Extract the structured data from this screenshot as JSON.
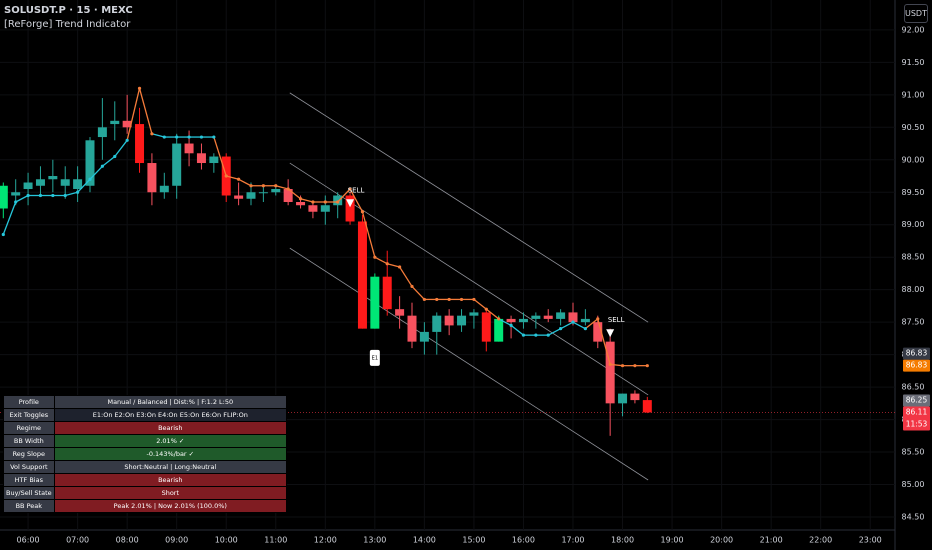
{
  "header": {
    "symbol": "SOLUSDT.P · 15 · MEXC",
    "indicator": "[ReForge] Trend Indicator",
    "currency": "USDT"
  },
  "chart_data": {
    "type": "candlestick",
    "x": [
      "05:30",
      "05:45",
      "06:00",
      "06:15",
      "06:30",
      "06:45",
      "07:00",
      "07:15",
      "07:30",
      "07:45",
      "08:00",
      "08:15",
      "08:30",
      "08:45",
      "09:00",
      "09:15",
      "09:30",
      "09:45",
      "10:00",
      "10:15",
      "10:30",
      "10:45",
      "11:00",
      "11:15",
      "11:30",
      "11:45",
      "12:00",
      "12:15",
      "12:30",
      "12:45",
      "13:00",
      "13:15",
      "13:30",
      "13:45",
      "14:00",
      "14:15",
      "14:30",
      "14:45",
      "15:00",
      "15:15",
      "15:30",
      "15:45",
      "16:00",
      "16:15",
      "16:30",
      "16:45",
      "17:00",
      "17:15",
      "17:30",
      "17:45",
      "18:00",
      "18:15",
      "18:30"
    ],
    "open": [
      89.25,
      89.45,
      89.55,
      89.6,
      89.7,
      89.6,
      89.55,
      89.6,
      90.35,
      90.55,
      90.6,
      90.55,
      89.95,
      89.5,
      89.6,
      90.25,
      90.1,
      89.95,
      90.05,
      89.45,
      89.4,
      89.5,
      89.5,
      89.55,
      89.35,
      89.3,
      89.2,
      89.3,
      89.45,
      89.05,
      87.4,
      88.2,
      87.7,
      87.6,
      87.2,
      87.35,
      87.6,
      87.45,
      87.6,
      87.65,
      87.2,
      87.55,
      87.5,
      87.55,
      87.6,
      87.55,
      87.65,
      87.5,
      87.5,
      87.2,
      86.25,
      86.4,
      86.3
    ],
    "high": [
      89.65,
      89.7,
      89.8,
      89.9,
      90.0,
      89.9,
      89.9,
      90.35,
      90.95,
      90.9,
      91.0,
      90.8,
      90.1,
      89.8,
      90.4,
      90.45,
      90.25,
      90.1,
      90.1,
      89.65,
      89.65,
      89.6,
      89.6,
      89.7,
      89.45,
      89.35,
      89.45,
      89.5,
      89.5,
      89.15,
      88.25,
      88.6,
      87.9,
      87.8,
      87.5,
      87.65,
      87.7,
      87.7,
      87.7,
      87.7,
      87.6,
      87.6,
      87.65,
      87.65,
      87.7,
      87.7,
      87.8,
      87.7,
      87.6,
      87.4,
      86.4,
      86.45,
      86.35
    ],
    "low": [
      89.1,
      89.3,
      89.3,
      89.45,
      89.5,
      89.4,
      89.35,
      89.5,
      90.0,
      90.3,
      90.4,
      89.8,
      89.3,
      89.4,
      89.4,
      89.9,
      89.85,
      89.8,
      89.35,
      89.3,
      89.3,
      89.35,
      89.45,
      89.3,
      89.25,
      89.1,
      89.0,
      89.1,
      89.0,
      87.4,
      87.4,
      87.6,
      87.4,
      87.1,
      87.0,
      87.0,
      87.3,
      87.35,
      87.4,
      87.05,
      87.2,
      87.25,
      87.4,
      87.4,
      87.5,
      87.45,
      87.45,
      87.45,
      87.1,
      85.75,
      86.05,
      86.25,
      86.1
    ],
    "close": [
      89.6,
      89.5,
      89.65,
      89.7,
      89.75,
      89.7,
      89.7,
      90.3,
      90.5,
      90.6,
      90.5,
      89.95,
      89.5,
      89.6,
      90.25,
      90.1,
      89.95,
      90.05,
      89.45,
      89.4,
      89.5,
      89.5,
      89.55,
      89.35,
      89.3,
      89.2,
      89.3,
      89.45,
      89.05,
      87.4,
      88.2,
      87.7,
      87.6,
      87.2,
      87.35,
      87.6,
      87.45,
      87.6,
      87.65,
      87.2,
      87.55,
      87.5,
      87.55,
      87.6,
      87.55,
      87.65,
      87.5,
      87.55,
      87.2,
      86.25,
      86.4,
      86.3,
      86.11
    ],
    "colors": [
      "#00e676",
      "#26a69a",
      "#26a69a",
      "#26a69a",
      "#26a69a",
      "#26a69a",
      "#26a69a",
      "#26a69a",
      "#26a69a",
      "#26a69a",
      "#f7525f",
      "#ff1a1a",
      "#f7525f",
      "#26a69a",
      "#26a69a",
      "#f7525f",
      "#f7525f",
      "#26a69a",
      "#ff1a1a",
      "#f7525f",
      "#26a69a",
      "#26a69a",
      "#26a69a",
      "#f7525f",
      "#f7525f",
      "#f7525f",
      "#26a69a",
      "#26a69a",
      "#ff1a1a",
      "#ff1a1a",
      "#00e676",
      "#ff1a1a",
      "#f7525f",
      "#f7525f",
      "#26a69a",
      "#26a69a",
      "#f7525f",
      "#26a69a",
      "#26a69a",
      "#ff1a1a",
      "#00e676",
      "#f7525f",
      "#26a69a",
      "#26a69a",
      "#f7525f",
      "#26a69a",
      "#f7525f",
      "#26a69a",
      "#f7525f",
      "#f7525f",
      "#26a69a",
      "#f7525f",
      "#ff1a1a"
    ],
    "trend": [
      88.85,
      89.35,
      89.45,
      89.45,
      89.45,
      89.45,
      89.5,
      89.7,
      89.9,
      90.05,
      90.3,
      91.1,
      90.4,
      90.35,
      90.35,
      90.35,
      90.35,
      90.35,
      89.75,
      89.7,
      89.6,
      89.6,
      89.6,
      89.55,
      89.4,
      89.35,
      89.35,
      89.35,
      89.55,
      89.2,
      88.5,
      88.4,
      88.35,
      88.05,
      87.85,
      87.85,
      87.85,
      87.85,
      87.85,
      87.7,
      87.55,
      87.45,
      87.3,
      87.3,
      87.3,
      87.4,
      87.5,
      87.4,
      87.55,
      86.85,
      86.83,
      86.83,
      86.83
    ],
    "trend_colors": [
      "#26c6da",
      "#26c6da",
      "#26c6da",
      "#26c6da",
      "#26c6da",
      "#26c6da",
      "#26c6da",
      "#26c6da",
      "#26c6da",
      "#26c6da",
      "#26c6da",
      "#f57c3a",
      "#f57c3a",
      "#26c6da",
      "#26c6da",
      "#26c6da",
      "#26c6da",
      "#26c6da",
      "#f57c3a",
      "#f57c3a",
      "#f57c3a",
      "#f57c3a",
      "#f57c3a",
      "#f57c3a",
      "#f57c3a",
      "#f57c3a",
      "#f57c3a",
      "#f57c3a",
      "#f57c3a",
      "#f57c3a",
      "#f57c3a",
      "#f57c3a",
      "#f57c3a",
      "#f57c3a",
      "#f57c3a",
      "#f57c3a",
      "#f57c3a",
      "#f57c3a",
      "#f57c3a",
      "#f57c3a",
      "#f57c3a",
      "#26c6da",
      "#26c6da",
      "#26c6da",
      "#26c6da",
      "#26c6da",
      "#26c6da",
      "#26c6da",
      "#f57c3a",
      "#f57c3a",
      "#f57c3a",
      "#f57c3a",
      "#f57c3a"
    ],
    "channel": [
      {
        "x": [
          "11:17",
          "18:31"
        ],
        "y": [
          91.03,
          87.5
        ]
      },
      {
        "x": [
          "11:17",
          "18:31"
        ],
        "y": [
          89.95,
          86.38
        ]
      },
      {
        "x": [
          "11:17",
          "18:31"
        ],
        "y": [
          88.64,
          85.07
        ]
      }
    ],
    "annotations": [
      {
        "x": "12:30",
        "y": 89.53,
        "text": "SELL"
      },
      {
        "x": "17:45",
        "y": 87.53,
        "text": "SELL"
      },
      {
        "x": "13:00",
        "y": 86.95,
        "text": "E1"
      }
    ],
    "price_labels": [
      {
        "value": 86.83,
        "label": "86.83",
        "color": "#363a45"
      },
      {
        "value": 86.83,
        "label": "86.83",
        "color": "#f57c00"
      },
      {
        "value": 86.25,
        "label": "86.25",
        "color": "#6a6d78"
      },
      {
        "value": 86.11,
        "label": "86.11",
        "sub": "11:53",
        "color": "#f23645"
      }
    ],
    "xlim": [
      "05:26",
      "23:30"
    ],
    "xticks": [
      "06:00",
      "07:00",
      "08:00",
      "09:00",
      "10:00",
      "11:00",
      "12:00",
      "13:00",
      "14:00",
      "15:00",
      "16:00",
      "17:00",
      "18:00",
      "19:00",
      "20:00",
      "21:00",
      "22:00",
      "23:00"
    ],
    "ylim": [
      84.3,
      92.46
    ],
    "yticks": [
      {
        "value": 84.5,
        "label": "84.50"
      },
      {
        "value": 85,
        "label": "85.00"
      },
      {
        "value": 85.5,
        "label": "85.50"
      },
      {
        "value": 86,
        "label": "86.00"
      },
      {
        "value": 86.5,
        "label": "86.50"
      },
      {
        "value": 87,
        "label": "87.00"
      },
      {
        "value": 87.5,
        "label": "87.50"
      },
      {
        "value": 88,
        "label": "88.00"
      },
      {
        "value": 88.5,
        "label": "88.50"
      },
      {
        "value": 89,
        "label": "89.00"
      },
      {
        "value": 89.5,
        "label": "89.50"
      },
      {
        "value": 90,
        "label": "90.00"
      },
      {
        "value": 90.5,
        "label": "90.50"
      },
      {
        "value": 91,
        "label": "91.00"
      },
      {
        "value": 91.5,
        "label": "91.50"
      },
      {
        "value": 92,
        "label": "92.00"
      }
    ],
    "grid": true
  },
  "table": {
    "rows": [
      {
        "label": "Profile",
        "value": "Manual / Balanced | Dist:% | F:1.2  L:50",
        "color": "#363a45"
      },
      {
        "label": "Exit Toggles",
        "value": "E1:On E2:On E3:On E4:On E5:On E6:On FLIP:On",
        "color": "#1e222d"
      },
      {
        "label": "Regime",
        "value": "Bearish",
        "color": "#801c22"
      },
      {
        "label": "BB Width",
        "value": "2.01% ✓",
        "color": "#1f5a2a"
      },
      {
        "label": "Reg Slope",
        "value": "-0.143%/bar ✓",
        "color": "#1f5a2a"
      },
      {
        "label": "Vol Support",
        "value": "Short:Neutral | Long:Neutral",
        "color": "#363a45"
      },
      {
        "label": "HTF Bias",
        "value": "Bearish",
        "color": "#801c22"
      },
      {
        "label": "Buy/Sell State",
        "value": "Short",
        "color": "#801c22"
      },
      {
        "label": "BB Peak",
        "value": "Peak 2.01% | Now 2.01% (100.0%)",
        "color": "#801c22"
      }
    ]
  }
}
